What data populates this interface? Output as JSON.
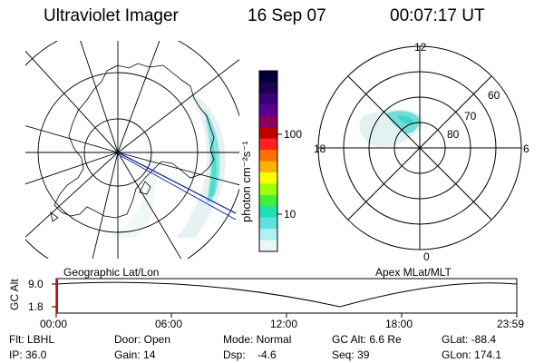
{
  "header": {
    "instrument": "Ultraviolet Imager",
    "date": "16 Sep 07",
    "time": "00:07:17 UT"
  },
  "geo_panel": {
    "label": "Geographic Lat/Lon"
  },
  "colorbar": {
    "unit_label": "photon cm⁻²s⁻¹",
    "ticks": [
      "100",
      "10"
    ],
    "colors": [
      "#000033",
      "#1a0050",
      "#3a007a",
      "#5a0090",
      "#8a0060",
      "#c00000",
      "#ff2020",
      "#ff7000",
      "#ffb000",
      "#ffff00",
      "#a0ff00",
      "#40f040",
      "#20e0b0",
      "#60e0e0",
      "#b0f0f0",
      "#e8f8f8"
    ]
  },
  "apex_panel": {
    "label": "Apex MLat/MLT",
    "mlt_labels": [
      "12",
      "18",
      "6",
      "0"
    ],
    "mlat_labels": [
      "60",
      "70",
      "80"
    ]
  },
  "altitude_plot": {
    "ylabel": "GC Alt",
    "yticks": [
      "9.0",
      "1.8"
    ],
    "xticks": [
      "00:00",
      "06:00",
      "12:00",
      "18:00",
      "23:59"
    ]
  },
  "info": {
    "flt_label": "Flt: LBHL",
    "door_label": "Door: Open",
    "mode_label": "Mode: Normal",
    "gcalt_label": "GC Alt: 6.6 Re",
    "glat_label": "GLat: -88.4",
    "ip_label": "IP: 36.0",
    "gain_label": "Gain: 14",
    "dsp_label": "Dsp:    -4.6",
    "seq_label": "Seq: 39",
    "glon_label": "GLon: 174.1"
  }
}
